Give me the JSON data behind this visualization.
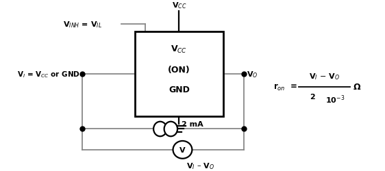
{
  "bg_color": "#ffffff",
  "box_label_vcc": "V$_{CC}$",
  "box_label_on": "(ON)",
  "box_label_gnd": "GND",
  "label_vinh": "V$_{INH}$ = V$_{IL}$",
  "label_vi": "V$_{I}$ = V$_{CC}$ or GND",
  "label_vo": "V$_{O}$",
  "label_vcc_top": "V$_{CC}$",
  "label_2ma": "2 mA",
  "label_vi_vo": "V$_{I}$ – V$_{O}$",
  "line_color": "#888888",
  "dot_color": "#000000",
  "text_color": "#000000",
  "font_size": 8.0,
  "lw": 1.3
}
